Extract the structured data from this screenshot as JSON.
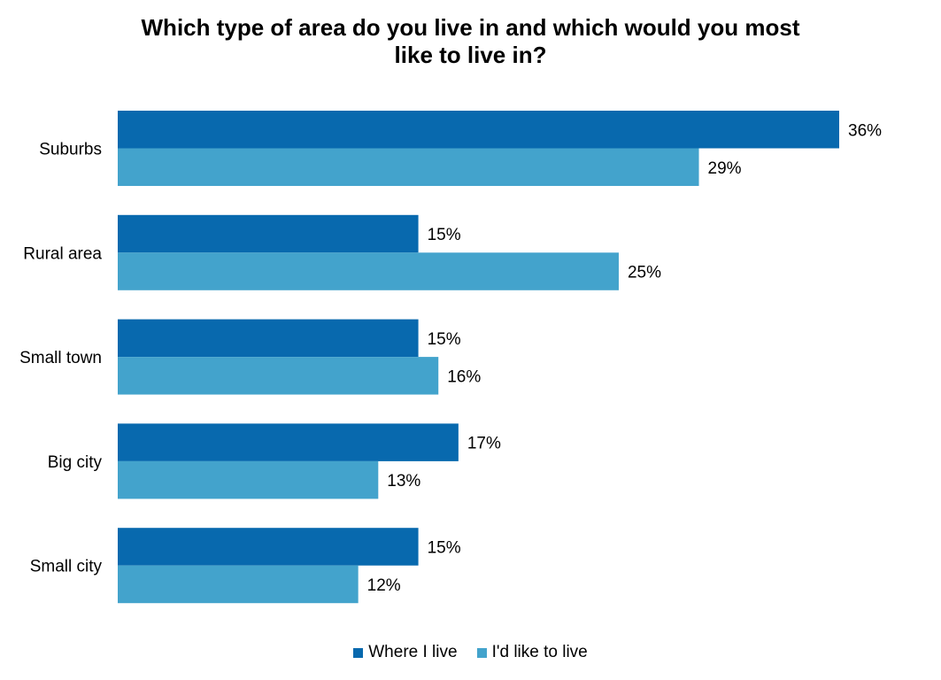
{
  "chart_data": {
    "type": "bar",
    "orientation": "horizontal",
    "title_lines": [
      "Which type of area do you live in and which would you most",
      "like to live in?"
    ],
    "categories": [
      "Suburbs",
      "Rural area",
      "Small town",
      "Big city",
      "Small city"
    ],
    "series": [
      {
        "name": "Where I live",
        "color": "#0869AE",
        "values": [
          36,
          15,
          15,
          17,
          15
        ]
      },
      {
        "name": "I'd like to live",
        "color": "#43A3CC",
        "values": [
          29,
          25,
          16,
          13,
          12
        ]
      }
    ],
    "value_suffix": "%",
    "xlim": [
      0,
      36
    ],
    "grid": false,
    "legend_position": "bottom"
  }
}
